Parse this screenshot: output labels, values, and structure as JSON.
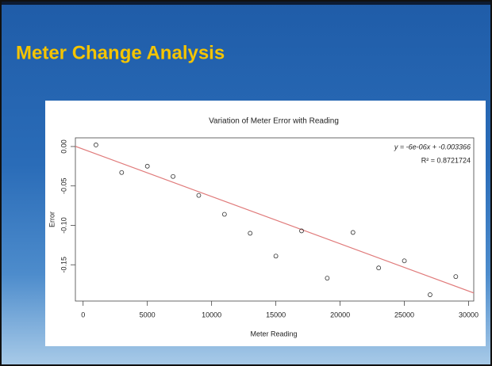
{
  "slide_title": "Meter Change Analysis",
  "chart_data": {
    "type": "scatter",
    "title": "Variation of Meter Error with Reading",
    "x_label": "Meter Reading",
    "y_label": "Error",
    "x": [
      1000,
      3000,
      5000,
      7000,
      9000,
      11000,
      13000,
      15000,
      17000,
      19000,
      21000,
      23000,
      25000,
      27000,
      29000
    ],
    "values": [
      0.002,
      -0.033,
      -0.025,
      -0.038,
      -0.062,
      -0.086,
      -0.11,
      -0.139,
      -0.107,
      -0.167,
      -0.109,
      -0.154,
      -0.145,
      -0.188,
      -0.165
    ],
    "color": "#333333",
    "xlim": [
      -600,
      30400
    ],
    "ylim": [
      -0.196,
      0.011
    ],
    "xticks": [
      0,
      5000,
      10000,
      15000,
      20000,
      25000,
      30000
    ],
    "yticks": [
      {
        "value": 0,
        "label": "0.00"
      },
      {
        "value": -0.05,
        "label": "-0.05"
      },
      {
        "value": -0.1,
        "label": "-0.10"
      },
      {
        "value": -0.15,
        "label": "-0.15"
      }
    ],
    "fit": {
      "slope": -6e-06,
      "intercept": -0.003366,
      "color": "#e07a7a",
      "label": "y = -6e-06x + -0.003366",
      "r2_label": "R² = 0.8721724"
    }
  }
}
